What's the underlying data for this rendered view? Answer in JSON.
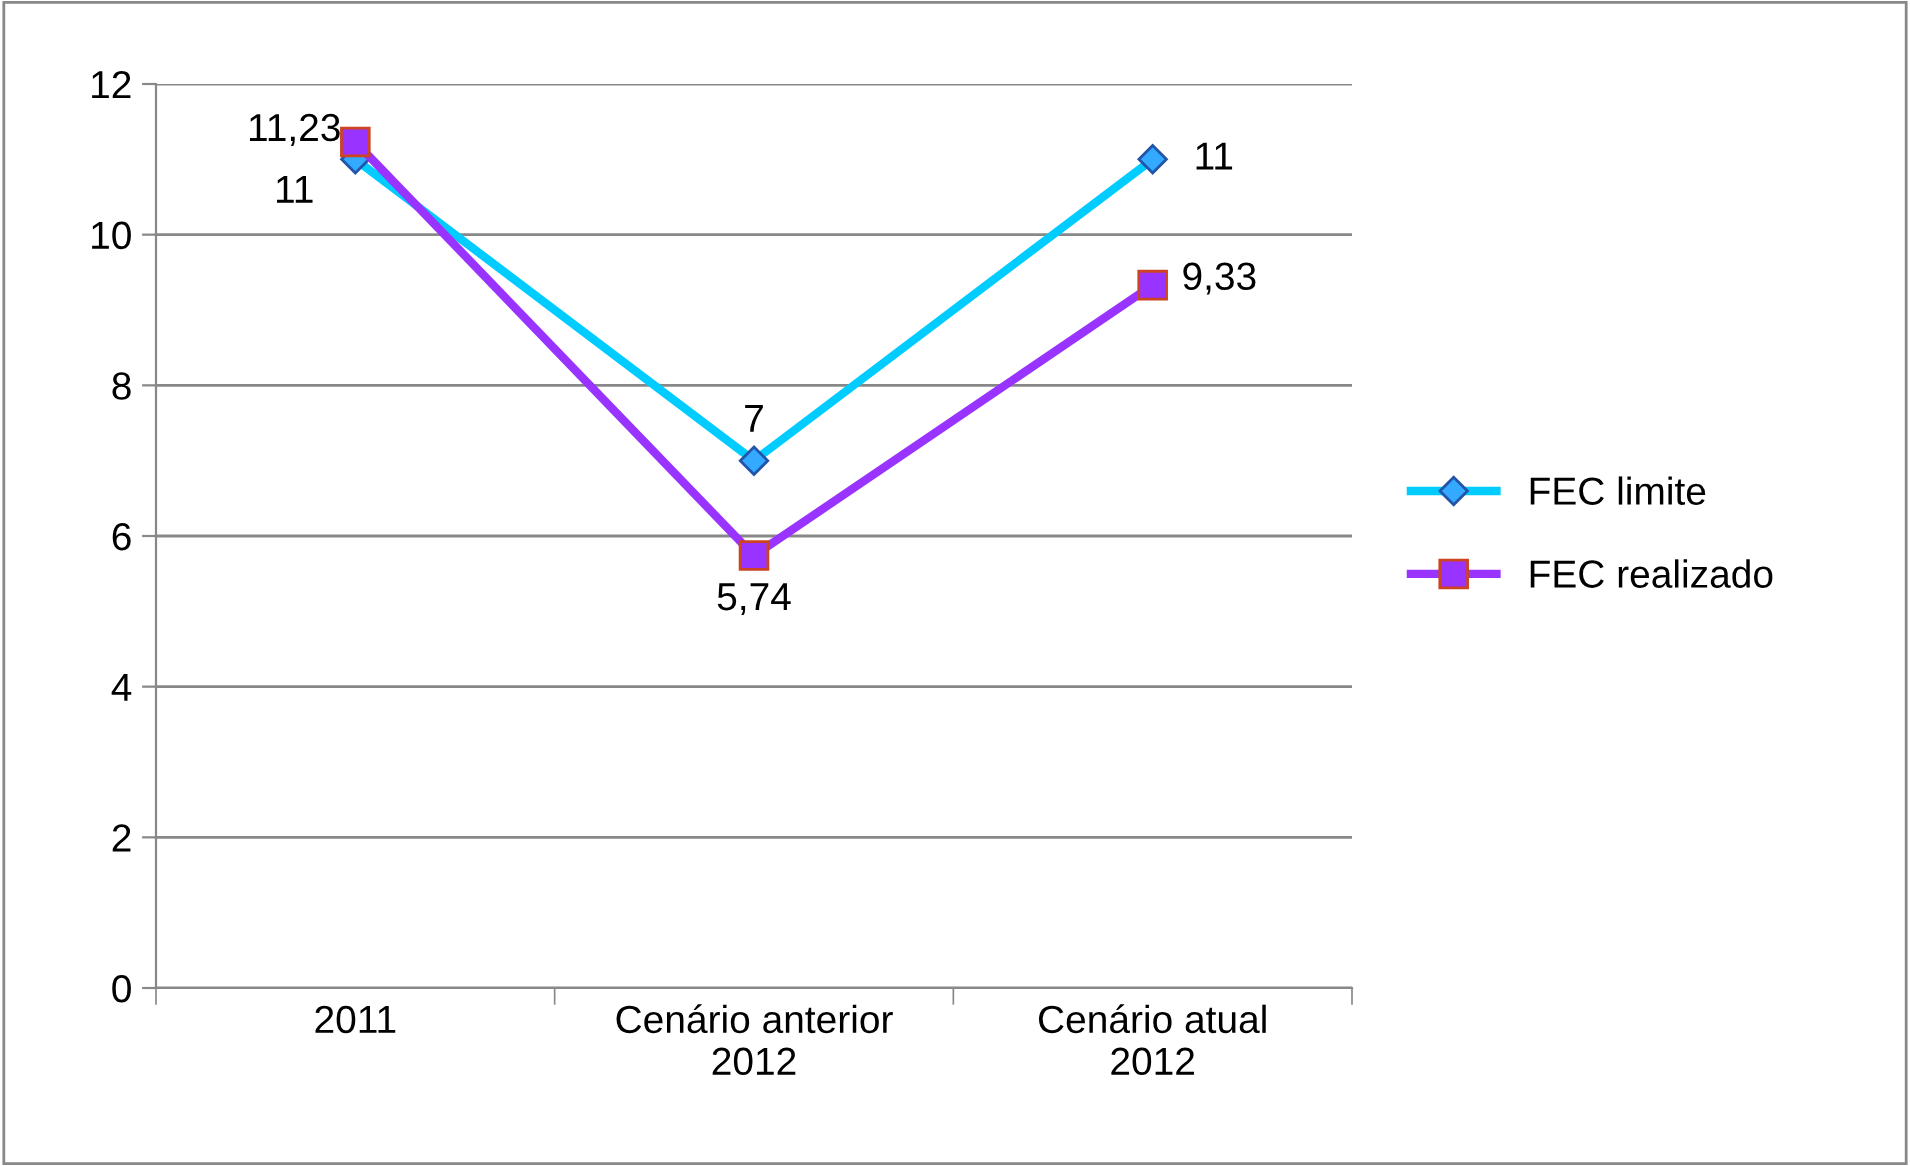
{
  "chart_data": {
    "type": "line",
    "categories": [
      "2011",
      "Cenário anterior\n2012",
      "Cenário atual\n2012"
    ],
    "series": [
      {
        "name": "FEC limite",
        "color": "#00ccff",
        "marker": "diamond",
        "values": [
          11,
          7,
          11
        ],
        "value_labels": [
          "11",
          "7",
          "11"
        ]
      },
      {
        "name": "FEC realizado",
        "color": "#9933ff",
        "marker": "square",
        "values": [
          11.23,
          5.74,
          9.33
        ],
        "value_labels": [
          "11,23",
          "5,74",
          "9,33"
        ]
      }
    ],
    "ylim": [
      0,
      12
    ],
    "yticks": [
      0,
      2,
      4,
      6,
      8,
      10,
      12
    ],
    "grid": "y",
    "legend": "right"
  }
}
